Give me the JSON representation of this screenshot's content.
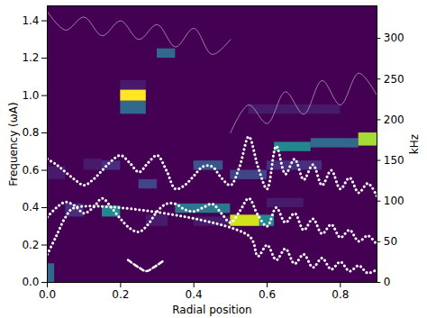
{
  "chart_data": {
    "type": "heatmap",
    "x_label": "Radial position",
    "y_label": "Frequency (ωA)",
    "y2_label": "kHz",
    "xlim": [
      0,
      0.9
    ],
    "ylim": [
      0,
      1.48
    ],
    "y2lim": [
      0,
      340
    ],
    "xticks": [
      {
        "value": 0,
        "label": "0.0"
      },
      0.2,
      0.4,
      0.6,
      0.8
    ],
    "yticks": [
      {
        "value": 0,
        "label": "0.0"
      },
      0.2,
      0.4,
      0.6,
      0.8,
      {
        "value": 1,
        "label": "1.0"
      },
      1.2,
      1.4
    ],
    "y2ticks": [
      0,
      50,
      100,
      150,
      200,
      250,
      300
    ],
    "cells": [
      {
        "x0": 0.0,
        "x1": 0.02,
        "y0": 0.0,
        "y1": 0.1,
        "value": 0.5
      },
      {
        "x0": 0.0,
        "x1": 0.05,
        "y0": 0.55,
        "y1": 0.62,
        "value": 0.3
      },
      {
        "x0": 0.05,
        "x1": 0.1,
        "y0": 0.35,
        "y1": 0.42,
        "value": 0.35
      },
      {
        "x0": 0.1,
        "x1": 0.15,
        "y0": 0.6,
        "y1": 0.66,
        "value": 0.3
      },
      {
        "x0": 0.15,
        "x1": 0.2,
        "y0": 0.35,
        "y1": 0.41,
        "value": 0.6
      },
      {
        "x0": 0.15,
        "x1": 0.2,
        "y0": 0.6,
        "y1": 0.65,
        "value": 0.35
      },
      {
        "x0": 0.2,
        "x1": 0.27,
        "y0": 0.97,
        "y1": 1.03,
        "value": 1.0
      },
      {
        "x0": 0.2,
        "x1": 0.27,
        "y0": 0.9,
        "y1": 0.97,
        "value": 0.5
      },
      {
        "x0": 0.2,
        "x1": 0.27,
        "y0": 1.03,
        "y1": 1.08,
        "value": 0.3
      },
      {
        "x0": 0.25,
        "x1": 0.3,
        "y0": 0.5,
        "y1": 0.55,
        "value": 0.4
      },
      {
        "x0": 0.3,
        "x1": 0.35,
        "y0": 1.2,
        "y1": 1.25,
        "value": 0.5
      },
      {
        "x0": 0.27,
        "x1": 0.33,
        "y0": 0.3,
        "y1": 0.36,
        "value": 0.3
      },
      {
        "x0": 0.35,
        "x1": 0.5,
        "y0": 0.37,
        "y1": 0.42,
        "value": 0.55
      },
      {
        "x0": 0.4,
        "x1": 0.48,
        "y0": 0.6,
        "y1": 0.65,
        "value": 0.45
      },
      {
        "x0": 0.4,
        "x1": 0.5,
        "y0": 0.3,
        "y1": 0.35,
        "value": 0.3
      },
      {
        "x0": 0.5,
        "x1": 0.58,
        "y0": 0.3,
        "y1": 0.36,
        "value": 0.95
      },
      {
        "x0": 0.58,
        "x1": 0.62,
        "y0": 0.3,
        "y1": 0.36,
        "value": 0.6
      },
      {
        "x0": 0.5,
        "x1": 0.6,
        "y0": 0.55,
        "y1": 0.6,
        "value": 0.4
      },
      {
        "x0": 0.55,
        "x1": 0.8,
        "y0": 0.9,
        "y1": 0.95,
        "value": 0.3
      },
      {
        "x0": 0.6,
        "x1": 0.75,
        "y0": 0.6,
        "y1": 0.65,
        "value": 0.35
      },
      {
        "x0": 0.62,
        "x1": 0.72,
        "y0": 0.7,
        "y1": 0.75,
        "value": 0.6
      },
      {
        "x0": 0.72,
        "x1": 0.85,
        "y0": 0.72,
        "y1": 0.77,
        "value": 0.5
      },
      {
        "x0": 0.85,
        "x1": 0.9,
        "y0": 0.73,
        "y1": 0.8,
        "value": 0.9
      },
      {
        "x0": 0.6,
        "x1": 0.7,
        "y0": 0.4,
        "y1": 0.45,
        "value": 0.3
      },
      {
        "x0": 0.7,
        "x1": 0.8,
        "y0": 0.35,
        "y1": 0.4,
        "value": 0.25
      }
    ],
    "curves": [
      {
        "color": "white",
        "line_style": "dotted",
        "x": [
          0,
          0.025,
          0.05,
          0.075,
          0.1,
          0.125,
          0.15,
          0.175,
          0.2,
          0.225,
          0.25,
          0.275,
          0.3,
          0.325,
          0.35,
          0.375,
          0.4,
          0.425,
          0.45,
          0.475,
          0.5,
          0.525,
          0.55,
          0.575,
          0.6,
          0.625,
          0.65,
          0.675,
          0.7,
          0.725,
          0.75,
          0.775,
          0.8,
          0.825,
          0.85,
          0.875,
          0.9
        ],
        "y": [
          0.66,
          0.63,
          0.59,
          0.55,
          0.52,
          0.55,
          0.6,
          0.65,
          0.68,
          0.64,
          0.59,
          0.64,
          0.68,
          0.6,
          0.5,
          0.52,
          0.57,
          0.62,
          0.62,
          0.56,
          0.52,
          0.62,
          0.78,
          0.62,
          0.5,
          0.73,
          0.58,
          0.66,
          0.55,
          0.63,
          0.52,
          0.6,
          0.5,
          0.56,
          0.48,
          0.53,
          0.46
        ]
      },
      {
        "color": "white",
        "line_style": "dotted",
        "x": [
          0,
          0.025,
          0.05,
          0.075,
          0.1,
          0.125,
          0.15,
          0.175,
          0.2,
          0.225,
          0.25,
          0.275,
          0.3,
          0.325,
          0.35,
          0.375,
          0.4,
          0.425,
          0.45,
          0.475,
          0.5,
          0.525,
          0.55,
          0.575,
          0.6,
          0.625,
          0.65,
          0.675,
          0.7,
          0.725,
          0.75,
          0.775,
          0.8,
          0.825,
          0.85,
          0.875,
          0.9
        ],
        "y": [
          0.35,
          0.4,
          0.43,
          0.41,
          0.37,
          0.4,
          0.45,
          0.4,
          0.34,
          0.29,
          0.27,
          0.31,
          0.38,
          0.42,
          0.42,
          0.39,
          0.38,
          0.4,
          0.42,
          0.37,
          0.32,
          0.38,
          0.45,
          0.36,
          0.3,
          0.4,
          0.32,
          0.37,
          0.28,
          0.34,
          0.26,
          0.31,
          0.24,
          0.28,
          0.22,
          0.25,
          0.2
        ]
      },
      {
        "color": "white",
        "line_style": "dotted",
        "x": [
          0,
          0.025,
          0.05,
          0.075,
          0.55,
          0.575,
          0.6,
          0.625,
          0.65,
          0.675,
          0.7,
          0.725,
          0.75,
          0.775,
          0.8,
          0.825,
          0.85,
          0.875,
          0.9
        ],
        "y": [
          0.15,
          0.25,
          0.35,
          0.4,
          0.25,
          0.14,
          0.2,
          0.12,
          0.18,
          0.1,
          0.15,
          0.08,
          0.13,
          0.07,
          0.11,
          0.06,
          0.09,
          0.05,
          0.07
        ]
      },
      {
        "color": "white",
        "line_style": "dashed",
        "x": [
          0.22,
          0.25,
          0.27,
          0.29,
          0.32
        ],
        "y": [
          0.12,
          0.08,
          0.06,
          0.08,
          0.12
        ]
      },
      {
        "color": "white",
        "line_style": "thin",
        "x": [
          0,
          0.05,
          0.1,
          0.15,
          0.2,
          0.25,
          0.3,
          0.35,
          0.4,
          0.45,
          0.5
        ],
        "y": [
          1.45,
          1.35,
          1.42,
          1.32,
          1.4,
          1.3,
          1.38,
          1.26,
          1.36,
          1.22,
          1.3
        ]
      },
      {
        "color": "white",
        "line_style": "thin",
        "x": [
          0.5,
          0.55,
          0.6,
          0.65,
          0.7,
          0.75,
          0.8,
          0.85,
          0.9
        ],
        "y": [
          0.8,
          0.95,
          0.85,
          1.02,
          0.9,
          1.08,
          0.95,
          1.12,
          1.0
        ]
      }
    ]
  }
}
